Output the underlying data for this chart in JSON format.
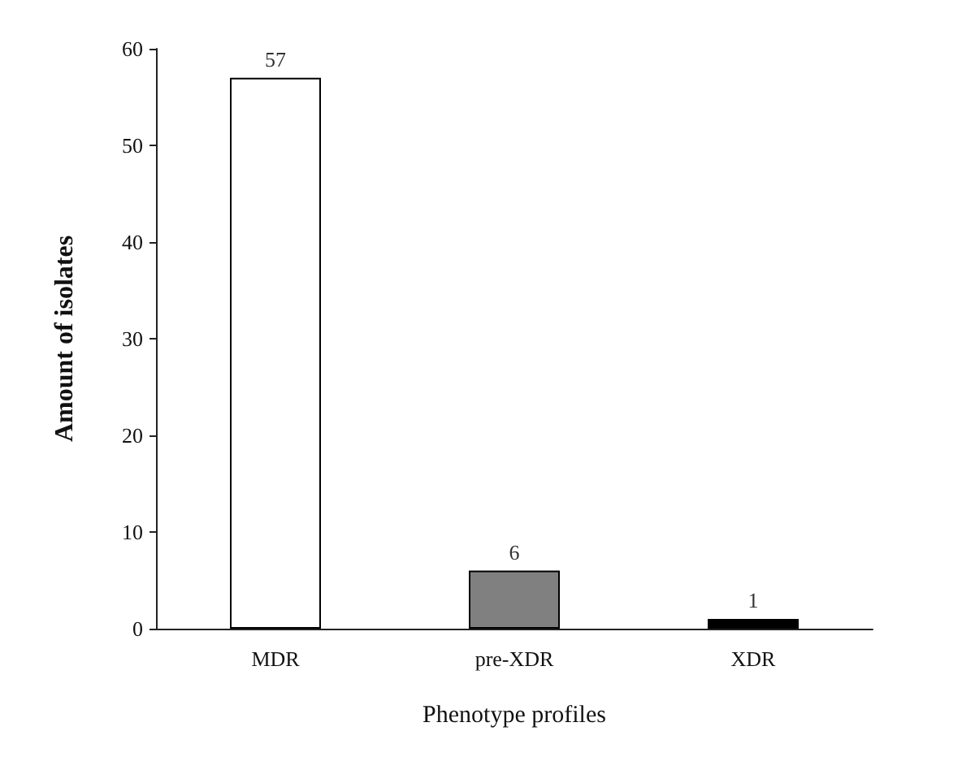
{
  "chart_data": {
    "type": "bar",
    "xlabel": "Phenotype profiles",
    "ylabel": "Amount of isolates",
    "categories": [
      "MDR",
      "pre-XDR",
      "XDR"
    ],
    "values": [
      57,
      6,
      1
    ],
    "colors": [
      "#ffffff",
      "#808080",
      "#000000"
    ],
    "ylim": [
      0,
      60
    ],
    "yticks": [
      0,
      10,
      20,
      30,
      40,
      50,
      60
    ],
    "grid": false,
    "data_labels": true
  }
}
